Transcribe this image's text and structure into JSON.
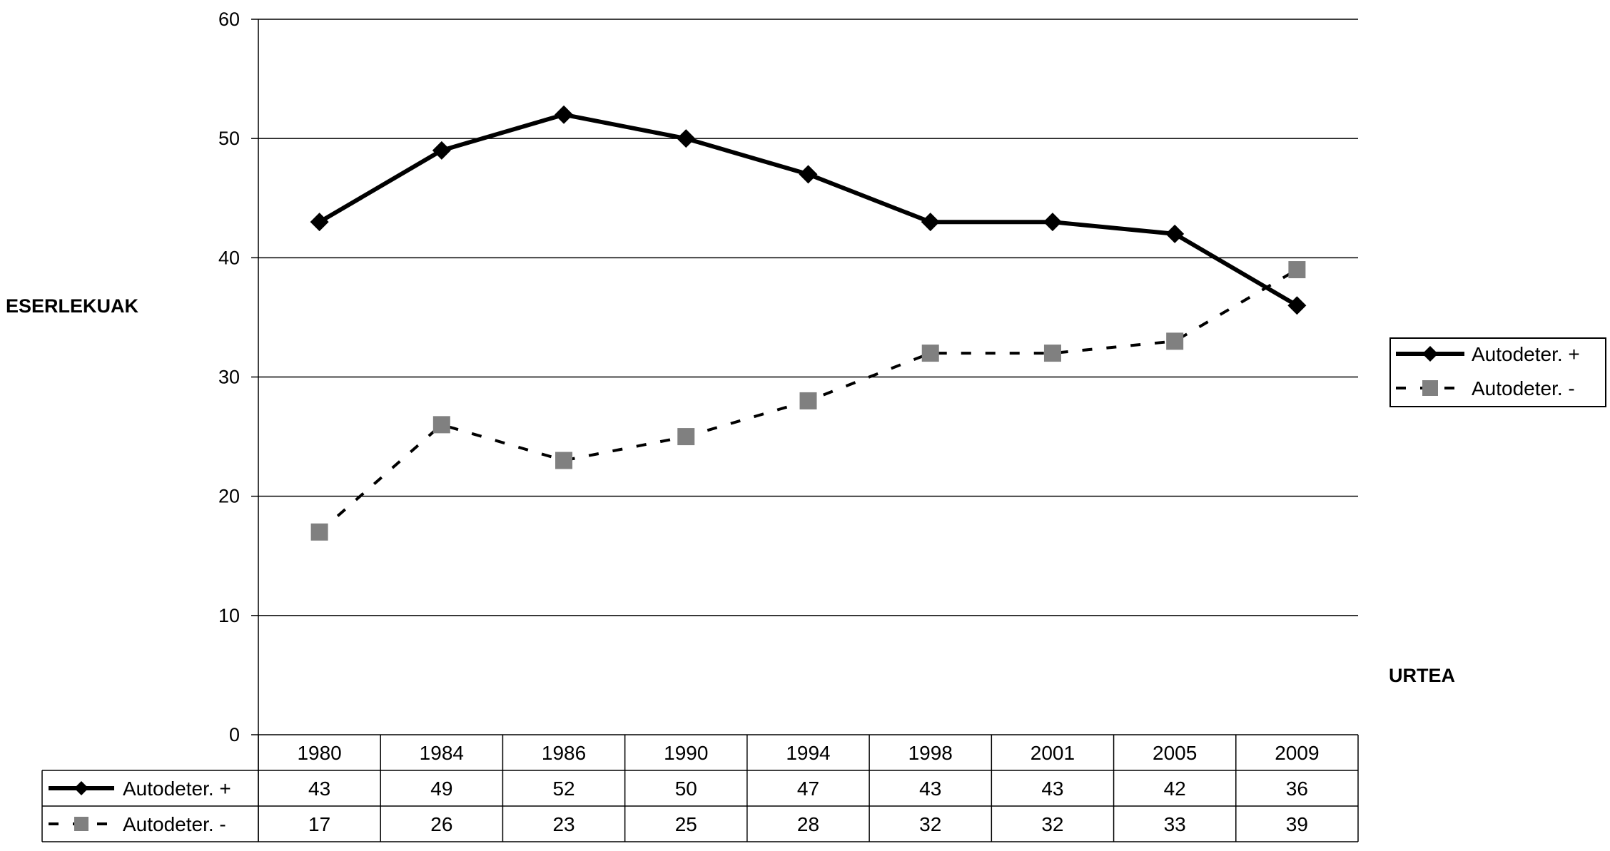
{
  "chart_data": {
    "type": "line",
    "categories": [
      "1980",
      "1984",
      "1986",
      "1990",
      "1994",
      "1998",
      "2001",
      "2005",
      "2009"
    ],
    "series": [
      {
        "name": "Autodeter. +",
        "values": [
          43,
          49,
          52,
          50,
          47,
          43,
          43,
          42,
          36
        ],
        "color": "#000000",
        "marker": "diamond",
        "line": "solid"
      },
      {
        "name": "Autodeter. -",
        "values": [
          17,
          26,
          23,
          25,
          28,
          32,
          32,
          33,
          39
        ],
        "color": "#808080",
        "marker": "square",
        "line": "dashed"
      }
    ],
    "ylabel": "ESERLEKUAK",
    "xlabel": "URTEA",
    "ylim": [
      0,
      60
    ],
    "yticks": [
      0,
      10,
      20,
      30,
      40,
      50,
      60
    ],
    "grid": true,
    "legend_position": "right",
    "data_table": true
  }
}
